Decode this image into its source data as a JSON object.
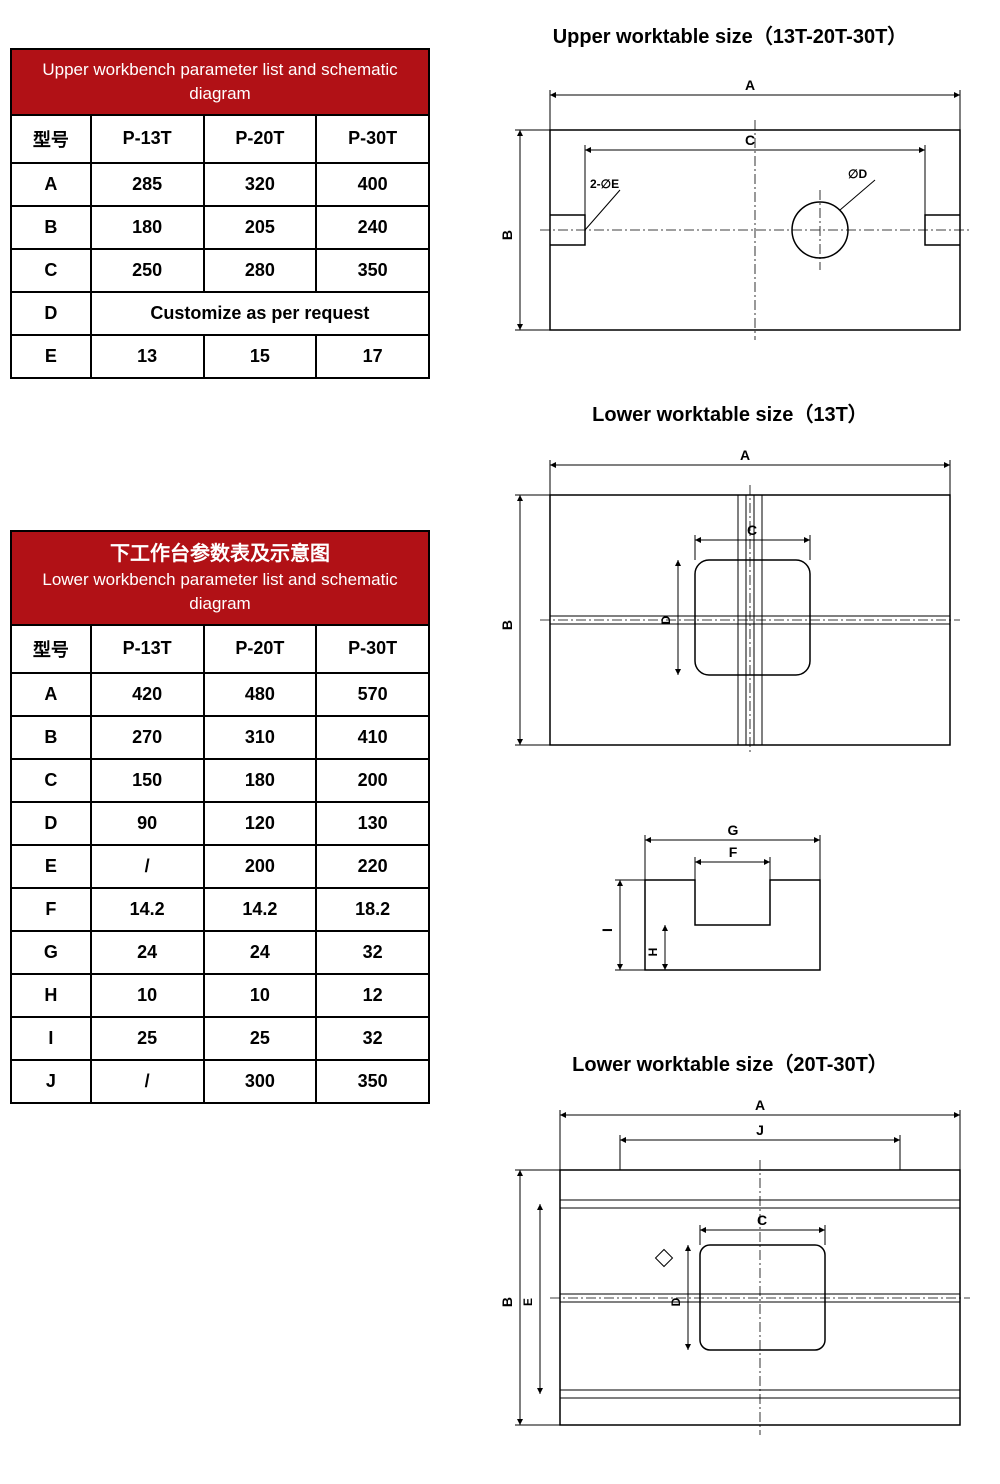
{
  "colors": {
    "header_bg": "#b11116",
    "header_fg": "#ffffff",
    "border": "#000000",
    "page_bg": "#ffffff"
  },
  "font": {
    "family": "Arial",
    "table_cell_pt": 18,
    "title_pt": 20
  },
  "upper_table": {
    "title": "Upper workbench parameter list and  schematic diagram",
    "columns": [
      "型号",
      "P-13T",
      "P-20T",
      "P-30T"
    ],
    "rows": [
      {
        "k": "A",
        "v": [
          "285",
          "320",
          "400"
        ]
      },
      {
        "k": "B",
        "v": [
          "180",
          "205",
          "240"
        ]
      },
      {
        "k": "C",
        "v": [
          "250",
          "280",
          "350"
        ]
      },
      {
        "k": "D",
        "span": "Customize as per request"
      },
      {
        "k": "E",
        "v": [
          "13",
          "15",
          "17"
        ]
      }
    ]
  },
  "lower_table": {
    "title_cn": "下工作台参数表及示意图",
    "title_en": "Lower workbench parameter list and  schematic diagram",
    "columns": [
      "型号",
      "P-13T",
      "P-20T",
      "P-30T"
    ],
    "rows": [
      {
        "k": "A",
        "v": [
          "420",
          "480",
          "570"
        ]
      },
      {
        "k": "B",
        "v": [
          "270",
          "310",
          "410"
        ]
      },
      {
        "k": "C",
        "v": [
          "150",
          "180",
          "200"
        ]
      },
      {
        "k": "D",
        "v": [
          "90",
          "120",
          "130"
        ]
      },
      {
        "k": "E",
        "v": [
          "/",
          "200",
          "220"
        ]
      },
      {
        "k": "F",
        "v": [
          "14.2",
          "14.2",
          "18.2"
        ]
      },
      {
        "k": "G",
        "v": [
          "24",
          "24",
          "32"
        ]
      },
      {
        "k": "H",
        "v": [
          "10",
          "10",
          "12"
        ]
      },
      {
        "k": "I",
        "v": [
          "25",
          "25",
          "32"
        ]
      },
      {
        "k": "J",
        "v": [
          "/",
          "300",
          "350"
        ]
      }
    ]
  },
  "diagrams": {
    "upper": {
      "title": "Upper worktable size（13T-20T-30T）",
      "labels": {
        "A": "A",
        "B": "B",
        "C": "C",
        "D": "∅D",
        "E": "2-∅E"
      }
    },
    "lower13": {
      "title": "Lower worktable size（13T）",
      "labels": {
        "A": "A",
        "B": "B",
        "C": "C",
        "D": "D"
      }
    },
    "tslot": {
      "labels": {
        "F": "F",
        "G": "G",
        "H": "H",
        "I": "I"
      }
    },
    "lower2030": {
      "title": "Lower worktable size（20T-30T）",
      "labels": {
        "A": "A",
        "B": "B",
        "C": "C",
        "D": "D",
        "E": "E",
        "J": "J"
      }
    }
  }
}
